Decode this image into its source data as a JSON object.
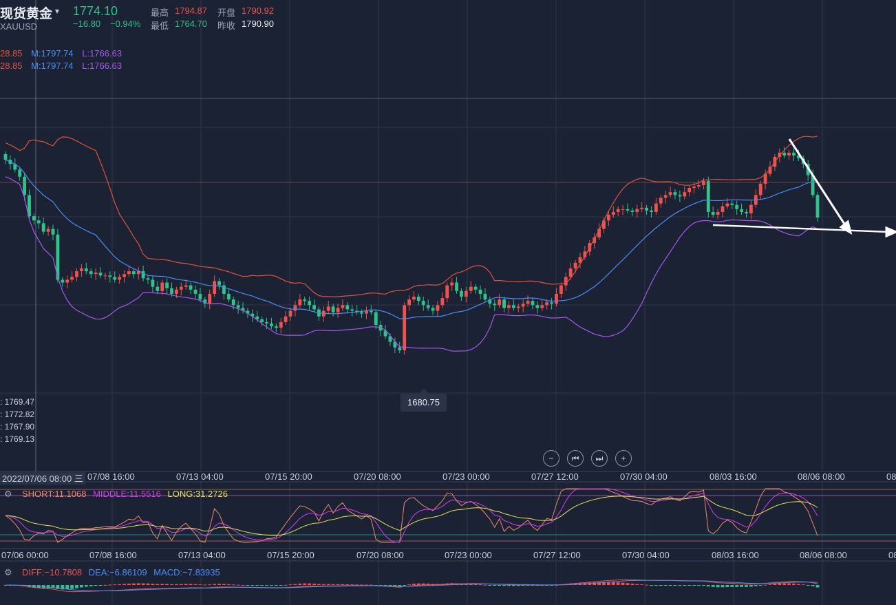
{
  "header": {
    "title": "现货黄金",
    "symbol": "XAUUSD",
    "price": "1774.10",
    "change": "−16.80",
    "change_pct": "−0.94%",
    "high_label": "最高",
    "high_value": "1794.87",
    "open_label": "开盘",
    "open_value": "1790.92",
    "low_label": "最低",
    "low_value": "1764.70",
    "prev_close_label": "昨收",
    "prev_close_value": "1790.90"
  },
  "boll_legend": [
    {
      "u": "28.85",
      "m": "M:1797.74",
      "l": "L:1766.63"
    },
    {
      "u": "28.85",
      "m": "M:1797.74",
      "l": "L:1766.63"
    }
  ],
  "ohlc_readout": [
    "1769.47",
    "1772.82",
    "1767.90",
    "1769.13"
  ],
  "low_marker": "1680.75",
  "controls": {
    "zoom_out": "−",
    "prev": "⏮",
    "next": "⏭",
    "zoom_in": "+"
  },
  "x_axis": {
    "crosshair_label": "2022/07/06 08:00 三",
    "ticks": [
      "07/08 16:00",
      "07/13 04:00",
      "07/15 20:00",
      "07/20 08:00",
      "07/23 00:00",
      "07/27 12:00",
      "07/30 04:00",
      "08/03 16:00",
      "08/06 08:00",
      "08"
    ]
  },
  "x_axis_2": {
    "ticks": [
      "07/06 00:00",
      "07/08 16:00",
      "07/13 04:00",
      "07/15 20:00",
      "07/20 08:00",
      "07/23 00:00",
      "07/27 12:00",
      "07/30 04:00",
      "08/03 16:00",
      "08/06 08:00",
      "08"
    ]
  },
  "indicator1": {
    "short": "SHORT:11.1068",
    "middle": "MIDDLE:11.5516",
    "long": "LONG:31.2726"
  },
  "indicator2": {
    "diff": "DIFF:−10.7808",
    "dea": "DEA:−6.86109",
    "macd": "MACD:−7.83935"
  },
  "colors": {
    "background": "#1b2233",
    "up": "#ef5350",
    "down": "#2fc28b",
    "boll_upper": "#e0533e",
    "boll_mid": "#4b8df8",
    "boll_lower": "#a558f0",
    "short": "#f08870",
    "middle": "#d63cf0",
    "long": "#e8e05a"
  },
  "chart_data": {
    "type": "candlestick",
    "symbol": "XAUUSD",
    "interval": "4h",
    "ylim": [
      1660,
      1855
    ],
    "low_annotation": 1680.75,
    "closes": [
      1815,
      1812,
      1808,
      1803,
      1790,
      1775,
      1772,
      1770,
      1764,
      1766,
      1762,
      1730,
      1728,
      1730,
      1732,
      1736,
      1738,
      1736,
      1734,
      1735,
      1733,
      1733,
      1732,
      1730,
      1732,
      1734,
      1736,
      1734,
      1736,
      1731,
      1730,
      1725,
      1722,
      1728,
      1724,
      1720,
      1723,
      1725,
      1726,
      1723,
      1720,
      1716,
      1713,
      1720,
      1729,
      1726,
      1720,
      1716,
      1712,
      1710,
      1708,
      1706,
      1704,
      1702,
      1700,
      1699,
      1697,
      1696,
      1700,
      1704,
      1708,
      1712,
      1716,
      1715,
      1712,
      1709,
      1704,
      1708,
      1711,
      1707,
      1710,
      1712,
      1709,
      1708,
      1707,
      1706,
      1708,
      1707,
      1698,
      1694,
      1690,
      1686,
      1682,
      1680,
      1712,
      1716,
      1718,
      1715,
      1712,
      1710,
      1708,
      1712,
      1717,
      1726,
      1728,
      1722,
      1718,
      1722,
      1725,
      1723,
      1720,
      1716,
      1713,
      1712,
      1716,
      1710,
      1712,
      1710,
      1711,
      1713,
      1715,
      1712,
      1710,
      1712,
      1714,
      1713,
      1720,
      1726,
      1732,
      1738,
      1742,
      1746,
      1750,
      1756,
      1760,
      1766,
      1772,
      1776,
      1778,
      1780,
      1780,
      1779,
      1778,
      1780,
      1781,
      1779,
      1778,
      1784,
      1788,
      1790,
      1792,
      1790,
      1789,
      1792,
      1795,
      1796,
      1797,
      1800,
      1778,
      1776,
      1778,
      1782,
      1784,
      1783,
      1780,
      1778,
      1777,
      1783,
      1790,
      1798,
      1805,
      1810,
      1817,
      1820,
      1818,
      1820,
      1818,
      1816,
      1812,
      1804,
      1790,
      1774
    ]
  }
}
